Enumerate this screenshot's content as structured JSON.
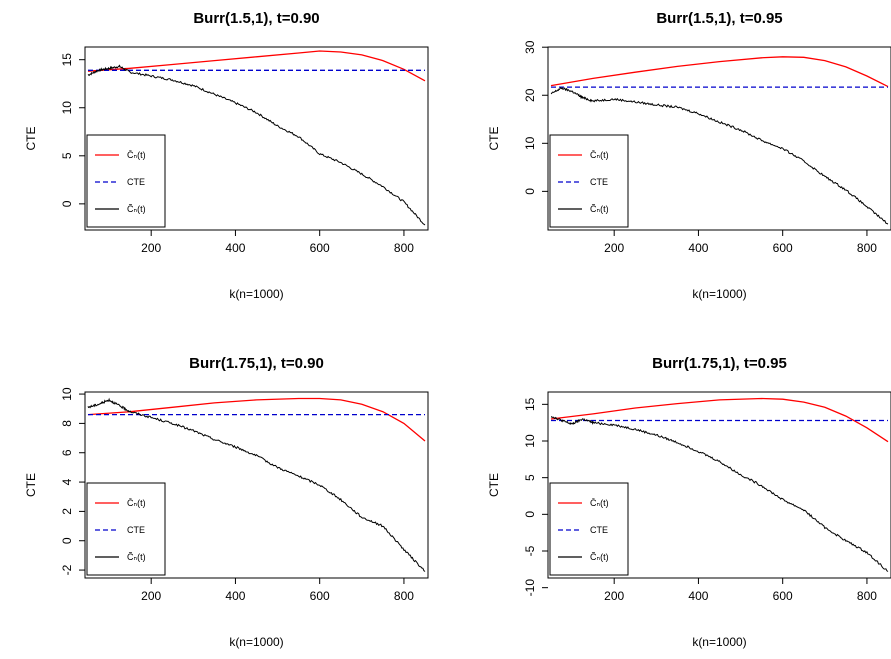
{
  "colors": {
    "cbar": "#ff0000",
    "cte": "#0000cc",
    "ctilde": "#000000"
  },
  "legend_labels": [
    "C̄ₙ(t)",
    "CTE",
    "C̃ₙ(t)"
  ],
  "chart_data": [
    {
      "type": "line",
      "title": "Burr(1.5,1), t=0.90",
      "xlabel": "k(n=1000)",
      "ylabel": "CTE",
      "xlim": [
        50,
        850
      ],
      "ylim": [
        -2.2,
        15.8
      ],
      "xticks": [
        200,
        400,
        600,
        800
      ],
      "yticks": [
        0,
        5,
        10,
        15
      ],
      "legend": "bottom-left",
      "series": [
        {
          "name": "C̄ₙ(t)",
          "style": "solid",
          "color": "#ff0000",
          "x": [
            50,
            150,
            250,
            350,
            450,
            550,
            600,
            650,
            700,
            750,
            800,
            850
          ],
          "y": [
            13.8,
            14.1,
            14.5,
            14.9,
            15.3,
            15.7,
            15.9,
            15.8,
            15.5,
            14.9,
            14.0,
            12.8
          ]
        },
        {
          "name": "CTE",
          "style": "dashed",
          "color": "#0000cc",
          "x": [
            50,
            850
          ],
          "y": [
            13.9,
            13.9
          ]
        },
        {
          "name": "C̃ₙ(t)",
          "style": "solid",
          "color": "#000000",
          "x": [
            50,
            75,
            100,
            125,
            150,
            200,
            250,
            300,
            350,
            400,
            450,
            500,
            550,
            600,
            650,
            700,
            750,
            800,
            850
          ],
          "y": [
            13.4,
            13.9,
            14.1,
            14.3,
            13.7,
            13.3,
            12.9,
            12.3,
            11.4,
            10.5,
            9.5,
            8.1,
            7.0,
            5.2,
            4.3,
            3.1,
            1.8,
            0.2,
            -2.2
          ]
        }
      ]
    },
    {
      "type": "line",
      "title": "Burr(1.5,1), t=0.95",
      "xlabel": "k(n=1000)",
      "ylabel": "CTE",
      "xlim": [
        50,
        850
      ],
      "ylim": [
        -7,
        29
      ],
      "xticks": [
        200,
        400,
        600,
        800
      ],
      "yticks": [
        0,
        10,
        20,
        30
      ],
      "legend": "bottom-left",
      "series": [
        {
          "name": "C̄ₙ(t)",
          "style": "solid",
          "color": "#ff0000",
          "x": [
            50,
            150,
            250,
            350,
            450,
            550,
            600,
            650,
            700,
            750,
            800,
            850
          ],
          "y": [
            22.0,
            23.5,
            24.8,
            26.0,
            27.0,
            27.8,
            28.0,
            27.9,
            27.2,
            25.9,
            24.0,
            21.8
          ]
        },
        {
          "name": "CTE",
          "style": "dashed",
          "color": "#0000cc",
          "x": [
            50,
            850
          ],
          "y": [
            21.7,
            21.7
          ]
        },
        {
          "name": "C̃ₙ(t)",
          "style": "solid",
          "color": "#000000",
          "x": [
            50,
            75,
            100,
            125,
            150,
            200,
            250,
            300,
            350,
            400,
            450,
            500,
            550,
            600,
            650,
            700,
            750,
            800,
            850
          ],
          "y": [
            20.3,
            21.5,
            20.8,
            19.5,
            18.8,
            19.2,
            18.6,
            18.0,
            17.5,
            16.2,
            14.4,
            12.8,
            10.6,
            8.9,
            6.3,
            3.1,
            0.3,
            -3.2,
            -6.8
          ]
        }
      ]
    },
    {
      "type": "line",
      "title": "Burr(1.75,1), t=0.90",
      "xlabel": "k(n=1000)",
      "ylabel": "CTE",
      "xlim": [
        50,
        850
      ],
      "ylim": [
        -2.2,
        9.8
      ],
      "xticks": [
        200,
        400,
        600,
        800
      ],
      "yticks": [
        -2,
        0,
        2,
        4,
        6,
        8,
        10
      ],
      "legend": "bottom-left",
      "series": [
        {
          "name": "C̄ₙ(t)",
          "style": "solid",
          "color": "#ff0000",
          "x": [
            50,
            150,
            250,
            350,
            450,
            550,
            600,
            650,
            700,
            750,
            800,
            850
          ],
          "y": [
            8.6,
            8.8,
            9.1,
            9.4,
            9.6,
            9.7,
            9.7,
            9.6,
            9.3,
            8.8,
            8.0,
            6.8
          ]
        },
        {
          "name": "CTE",
          "style": "dashed",
          "color": "#0000cc",
          "x": [
            50,
            850
          ],
          "y": [
            8.6,
            8.6
          ]
        },
        {
          "name": "C̃ₙ(t)",
          "style": "solid",
          "color": "#000000",
          "x": [
            50,
            75,
            100,
            125,
            150,
            200,
            250,
            300,
            350,
            400,
            450,
            500,
            550,
            600,
            650,
            700,
            750,
            800,
            850
          ],
          "y": [
            9.1,
            9.3,
            9.6,
            9.2,
            8.8,
            8.4,
            8.0,
            7.5,
            6.9,
            6.4,
            5.8,
            5.0,
            4.4,
            3.8,
            2.8,
            1.6,
            1.0,
            -0.6,
            -2.1
          ]
        }
      ]
    },
    {
      "type": "line",
      "title": "Burr(1.75,1), t=0.95",
      "xlabel": "k(n=1000)",
      "ylabel": "CTE",
      "xlim": [
        50,
        850
      ],
      "ylim": [
        -8,
        16
      ],
      "xticks": [
        200,
        400,
        600,
        800
      ],
      "yticks": [
        -10,
        -5,
        0,
        5,
        10,
        15
      ],
      "legend": "bottom-left",
      "series": [
        {
          "name": "C̄ₙ(t)",
          "style": "solid",
          "color": "#ff0000",
          "x": [
            50,
            150,
            250,
            350,
            450,
            550,
            600,
            650,
            700,
            750,
            800,
            850
          ],
          "y": [
            13.0,
            13.7,
            14.5,
            15.1,
            15.6,
            15.8,
            15.7,
            15.3,
            14.6,
            13.4,
            11.8,
            9.9
          ]
        },
        {
          "name": "CTE",
          "style": "dashed",
          "color": "#0000cc",
          "x": [
            50,
            850
          ],
          "y": [
            12.8,
            12.8
          ]
        },
        {
          "name": "C̃ₙ(t)",
          "style": "solid",
          "color": "#000000",
          "x": [
            50,
            75,
            100,
            125,
            150,
            200,
            250,
            300,
            350,
            400,
            450,
            500,
            550,
            600,
            650,
            700,
            750,
            800,
            850
          ],
          "y": [
            13.4,
            12.8,
            12.3,
            13.0,
            12.5,
            12.2,
            11.6,
            10.8,
            9.8,
            8.6,
            7.2,
            5.4,
            3.9,
            2.0,
            0.6,
            -1.8,
            -3.6,
            -5.2,
            -7.8
          ]
        }
      ]
    }
  ]
}
